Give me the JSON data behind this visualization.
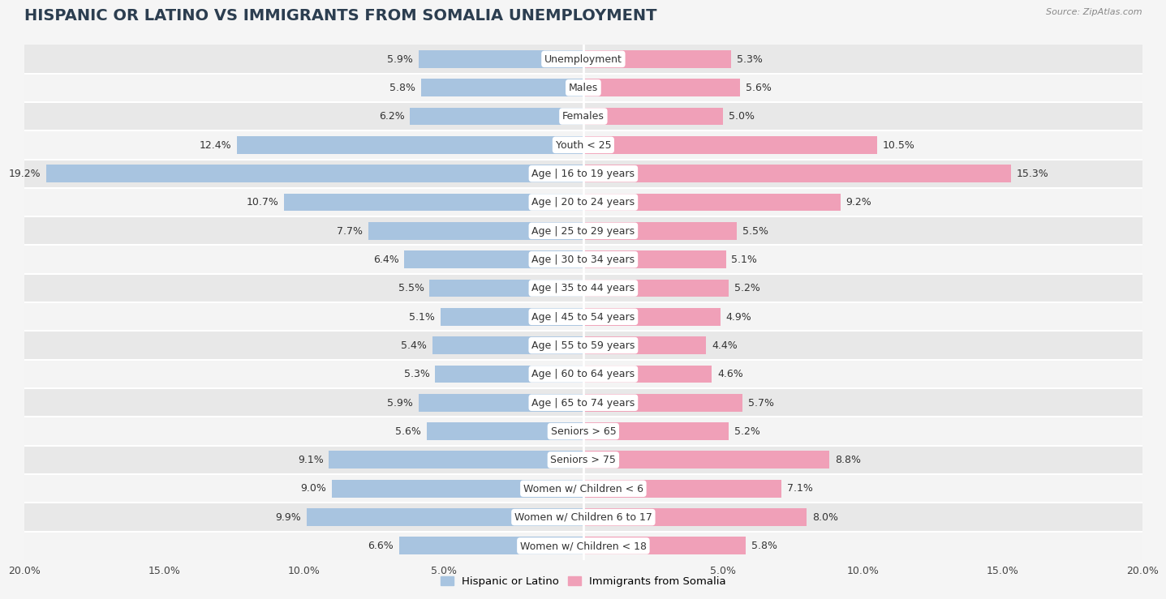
{
  "title": "HISPANIC OR LATINO VS IMMIGRANTS FROM SOMALIA UNEMPLOYMENT",
  "source": "Source: ZipAtlas.com",
  "categories": [
    "Unemployment",
    "Males",
    "Females",
    "Youth < 25",
    "Age | 16 to 19 years",
    "Age | 20 to 24 years",
    "Age | 25 to 29 years",
    "Age | 30 to 34 years",
    "Age | 35 to 44 years",
    "Age | 45 to 54 years",
    "Age | 55 to 59 years",
    "Age | 60 to 64 years",
    "Age | 65 to 74 years",
    "Seniors > 65",
    "Seniors > 75",
    "Women w/ Children < 6",
    "Women w/ Children 6 to 17",
    "Women w/ Children < 18"
  ],
  "hispanic_values": [
    5.9,
    5.8,
    6.2,
    12.4,
    19.2,
    10.7,
    7.7,
    6.4,
    5.5,
    5.1,
    5.4,
    5.3,
    5.9,
    5.6,
    9.1,
    9.0,
    9.9,
    6.6
  ],
  "somalia_values": [
    5.3,
    5.6,
    5.0,
    10.5,
    15.3,
    9.2,
    5.5,
    5.1,
    5.2,
    4.9,
    4.4,
    4.6,
    5.7,
    5.2,
    8.8,
    7.1,
    8.0,
    5.8
  ],
  "hispanic_color": "#a8c4e0",
  "somalia_color": "#f0a0b8",
  "bar_height": 0.62,
  "xlim": 20.0,
  "row_colors": [
    "#e8e8e8",
    "#f4f4f4"
  ],
  "white_gap_color": "#ffffff",
  "title_fontsize": 14,
  "label_fontsize": 9,
  "value_fontsize": 9,
  "axis_label_fontsize": 9,
  "fig_bg": "#f5f5f5"
}
